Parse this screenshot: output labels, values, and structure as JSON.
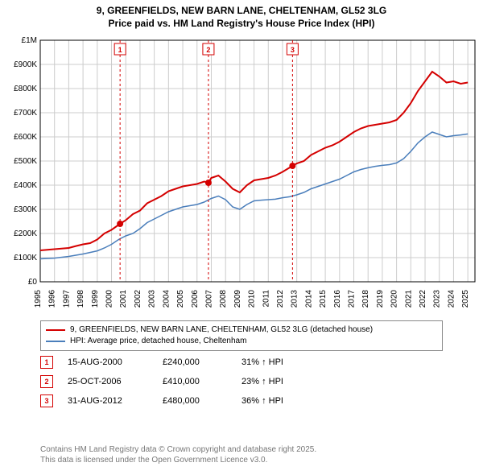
{
  "title_line1": "9, GREENFIELDS, NEW BARN LANE, CHELTENHAM, GL52 3LG",
  "title_line2": "Price paid vs. HM Land Registry's House Price Index (HPI)",
  "chart": {
    "type": "line",
    "background_color": "#ffffff",
    "grid_color": "#cccccc",
    "axis_color": "#000000",
    "xlim": [
      1995,
      2025.5
    ],
    "ylim": [
      0,
      1000000
    ],
    "yticks": [
      0,
      100000,
      200000,
      300000,
      400000,
      500000,
      600000,
      700000,
      800000,
      900000,
      1000000
    ],
    "ytick_labels": [
      "£0",
      "£100K",
      "£200K",
      "£300K",
      "£400K",
      "£500K",
      "£600K",
      "£700K",
      "£800K",
      "£900K",
      "£1M"
    ],
    "xticks": [
      1995,
      1996,
      1997,
      1998,
      1999,
      2000,
      2001,
      2002,
      2003,
      2004,
      2005,
      2006,
      2007,
      2008,
      2009,
      2010,
      2011,
      2012,
      2013,
      2014,
      2015,
      2016,
      2017,
      2018,
      2019,
      2020,
      2021,
      2022,
      2023,
      2024,
      2025
    ],
    "series": [
      {
        "name": "price_paid",
        "color": "#d40000",
        "line_width": 2,
        "points": [
          [
            1995,
            130000
          ],
          [
            1996,
            135000
          ],
          [
            1997,
            140000
          ],
          [
            1997.5,
            148000
          ],
          [
            1998,
            155000
          ],
          [
            1998.5,
            160000
          ],
          [
            1999,
            175000
          ],
          [
            1999.5,
            200000
          ],
          [
            2000,
            215000
          ],
          [
            2000.6,
            240000
          ],
          [
            2001,
            255000
          ],
          [
            2001.5,
            280000
          ],
          [
            2002,
            295000
          ],
          [
            2002.5,
            325000
          ],
          [
            2003,
            340000
          ],
          [
            2003.5,
            355000
          ],
          [
            2004,
            375000
          ],
          [
            2004.5,
            385000
          ],
          [
            2005,
            395000
          ],
          [
            2005.5,
            400000
          ],
          [
            2006,
            405000
          ],
          [
            2006.5,
            415000
          ],
          [
            2006.8,
            410000
          ],
          [
            2007,
            430000
          ],
          [
            2007.5,
            440000
          ],
          [
            2008,
            415000
          ],
          [
            2008.5,
            385000
          ],
          [
            2009,
            370000
          ],
          [
            2009.5,
            400000
          ],
          [
            2010,
            420000
          ],
          [
            2010.5,
            425000
          ],
          [
            2011,
            430000
          ],
          [
            2011.5,
            440000
          ],
          [
            2012,
            455000
          ],
          [
            2012.7,
            480000
          ],
          [
            2013,
            490000
          ],
          [
            2013.5,
            500000
          ],
          [
            2014,
            525000
          ],
          [
            2014.5,
            540000
          ],
          [
            2015,
            555000
          ],
          [
            2015.5,
            565000
          ],
          [
            2016,
            580000
          ],
          [
            2016.5,
            600000
          ],
          [
            2017,
            620000
          ],
          [
            2017.5,
            635000
          ],
          [
            2018,
            645000
          ],
          [
            2018.5,
            650000
          ],
          [
            2019,
            655000
          ],
          [
            2019.5,
            660000
          ],
          [
            2020,
            670000
          ],
          [
            2020.5,
            700000
          ],
          [
            2021,
            740000
          ],
          [
            2021.5,
            790000
          ],
          [
            2022,
            830000
          ],
          [
            2022.5,
            870000
          ],
          [
            2023,
            850000
          ],
          [
            2023.5,
            825000
          ],
          [
            2024,
            830000
          ],
          [
            2024.5,
            820000
          ],
          [
            2025,
            825000
          ]
        ]
      },
      {
        "name": "hpi",
        "color": "#4a7ebb",
        "line_width": 1.5,
        "points": [
          [
            1995,
            95000
          ],
          [
            1996,
            98000
          ],
          [
            1997,
            105000
          ],
          [
            1998,
            115000
          ],
          [
            1999,
            128000
          ],
          [
            1999.5,
            140000
          ],
          [
            2000,
            155000
          ],
          [
            2000.5,
            175000
          ],
          [
            2001,
            190000
          ],
          [
            2001.5,
            200000
          ],
          [
            2002,
            220000
          ],
          [
            2002.5,
            245000
          ],
          [
            2003,
            260000
          ],
          [
            2003.5,
            275000
          ],
          [
            2004,
            290000
          ],
          [
            2004.5,
            300000
          ],
          [
            2005,
            310000
          ],
          [
            2005.5,
            315000
          ],
          [
            2006,
            320000
          ],
          [
            2006.5,
            330000
          ],
          [
            2007,
            345000
          ],
          [
            2007.5,
            355000
          ],
          [
            2008,
            340000
          ],
          [
            2008.5,
            310000
          ],
          [
            2009,
            300000
          ],
          [
            2009.5,
            320000
          ],
          [
            2010,
            335000
          ],
          [
            2010.5,
            338000
          ],
          [
            2011,
            340000
          ],
          [
            2011.5,
            342000
          ],
          [
            2012,
            348000
          ],
          [
            2012.5,
            352000
          ],
          [
            2013,
            360000
          ],
          [
            2013.5,
            370000
          ],
          [
            2014,
            385000
          ],
          [
            2014.5,
            395000
          ],
          [
            2015,
            405000
          ],
          [
            2015.5,
            415000
          ],
          [
            2016,
            425000
          ],
          [
            2016.5,
            440000
          ],
          [
            2017,
            455000
          ],
          [
            2017.5,
            465000
          ],
          [
            2018,
            472000
          ],
          [
            2018.5,
            478000
          ],
          [
            2019,
            482000
          ],
          [
            2019.5,
            485000
          ],
          [
            2020,
            492000
          ],
          [
            2020.5,
            510000
          ],
          [
            2021,
            540000
          ],
          [
            2021.5,
            575000
          ],
          [
            2022,
            600000
          ],
          [
            2022.5,
            620000
          ],
          [
            2023,
            610000
          ],
          [
            2023.5,
            600000
          ],
          [
            2024,
            605000
          ],
          [
            2024.5,
            608000
          ],
          [
            2025,
            612000
          ]
        ]
      }
    ],
    "markers": [
      {
        "n": "1",
        "x": 2000.6,
        "y": 240000,
        "color": "#d40000"
      },
      {
        "n": "2",
        "x": 2006.8,
        "y": 410000,
        "color": "#d40000"
      },
      {
        "n": "3",
        "x": 2012.7,
        "y": 480000,
        "color": "#d40000"
      }
    ]
  },
  "legend": {
    "series1": {
      "label": "9, GREENFIELDS, NEW BARN LANE, CHELTENHAM, GL52 3LG (detached house)",
      "color": "#d40000"
    },
    "series2": {
      "label": "HPI: Average price, detached house, Cheltenham",
      "color": "#4a7ebb"
    }
  },
  "sales": [
    {
      "n": "1",
      "date": "15-AUG-2000",
      "price": "£240,000",
      "hpi": "31% ↑ HPI",
      "color": "#d40000"
    },
    {
      "n": "2",
      "date": "25-OCT-2006",
      "price": "£410,000",
      "hpi": "23% ↑ HPI",
      "color": "#d40000"
    },
    {
      "n": "3",
      "date": "31-AUG-2012",
      "price": "£480,000",
      "hpi": "36% ↑ HPI",
      "color": "#d40000"
    }
  ],
  "footer_line1": "Contains HM Land Registry data © Crown copyright and database right 2025.",
  "footer_line2": "This data is licensed under the Open Government Licence v3.0."
}
